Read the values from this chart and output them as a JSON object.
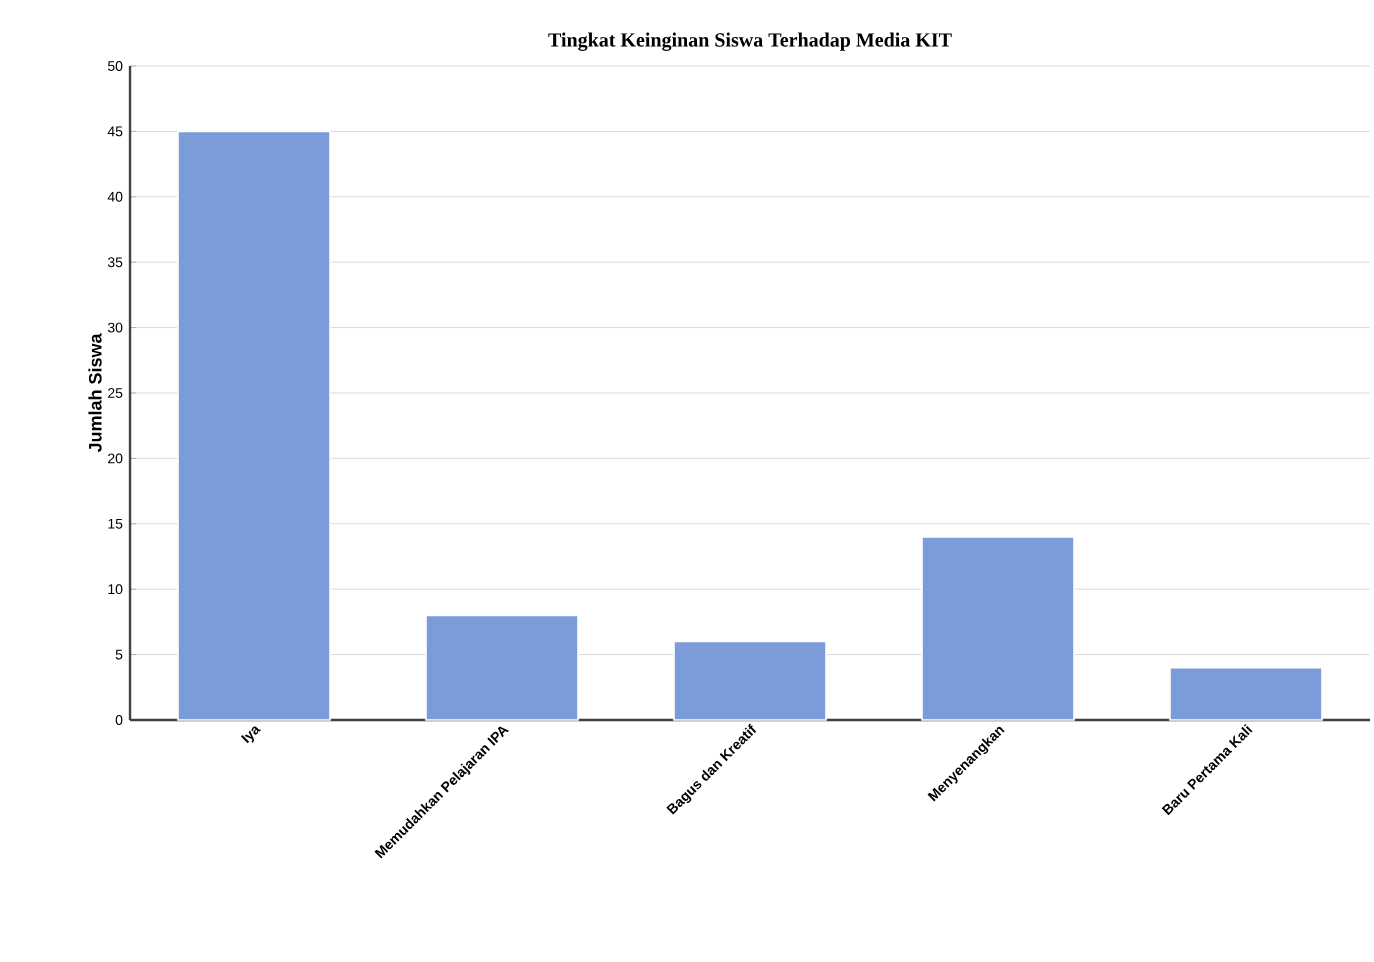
{
  "chart_data": {
    "type": "bar",
    "title": "Tingkat Keinginan Siswa Terhadap Media KIT",
    "ylabel": "Jumlah Siswa",
    "categories": [
      "Iya",
      "Memudahkan Pelajaran IPA",
      "Bagus dan Kreatif",
      "Menyenangkan",
      "Baru Pertama Kali"
    ],
    "values": [
      45,
      8,
      6,
      14,
      4
    ],
    "color": "#7b9bd9",
    "ylim": [
      0,
      50
    ],
    "yticks": [
      0,
      5,
      10,
      15,
      20,
      25,
      30,
      35,
      40,
      45,
      50
    ],
    "grid": "y"
  }
}
